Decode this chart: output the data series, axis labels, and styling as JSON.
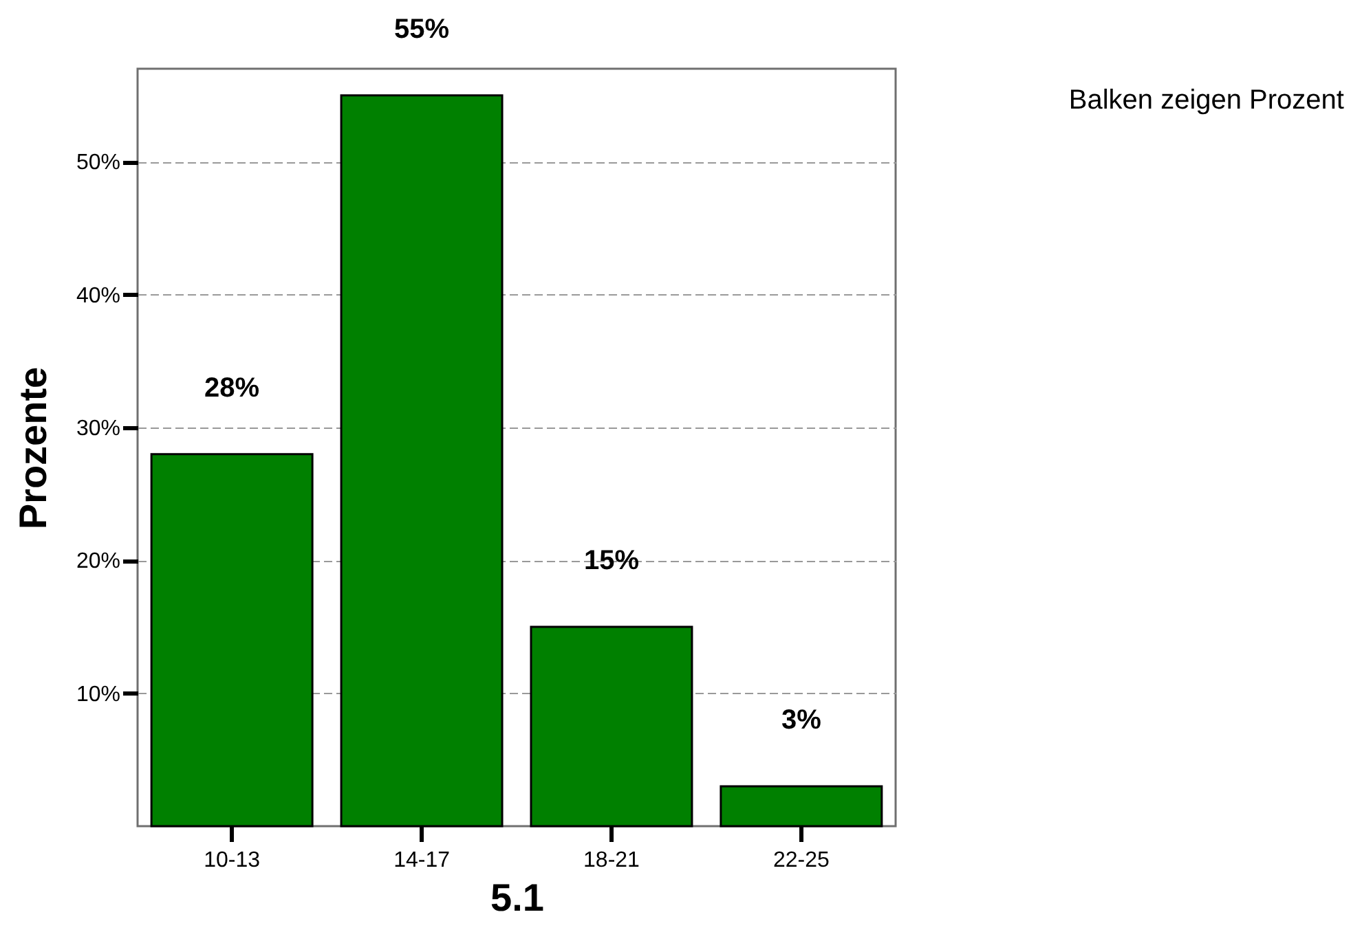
{
  "chart_data": {
    "type": "bar",
    "xlabel": "5.1",
    "ylabel": "Prozente",
    "annotations": [
      "Balken zeigen Prozent"
    ],
    "categories": [
      "10-13",
      "14-17",
      "18-21",
      "22-25"
    ],
    "values": [
      28,
      55,
      15,
      3
    ],
    "value_labels": [
      "28%",
      "55%",
      "15%",
      "3%"
    ],
    "color": "#008000",
    "ylim": [
      0,
      57
    ],
    "yticks": [
      {
        "value": 10,
        "label": "10%"
      },
      {
        "value": 20,
        "label": "20%"
      },
      {
        "value": 30,
        "label": "30%"
      },
      {
        "value": 40,
        "label": "40%"
      },
      {
        "value": 50,
        "label": "50%"
      }
    ],
    "grid": "y"
  }
}
